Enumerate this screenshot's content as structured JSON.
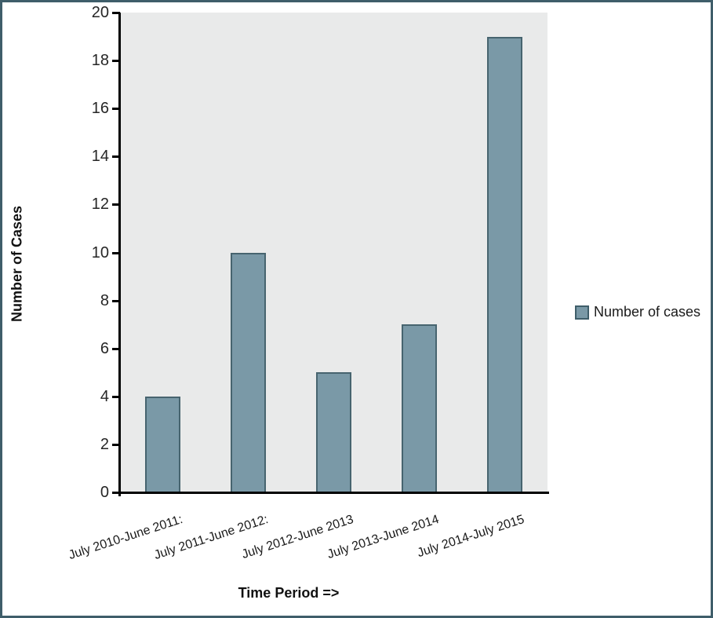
{
  "chart_data": {
    "type": "bar",
    "categories": [
      "July 2010-June 2011:",
      "July 2011-June 2012:",
      "July 2012-June 2013",
      "July 2013-June 2014",
      "July 2014-July 2015"
    ],
    "values": [
      4,
      10,
      5,
      7,
      19
    ],
    "series_name": "Number of cases",
    "title": "",
    "xlabel": "Time Period =>",
    "ylabel": "Number of Cases",
    "ylim": [
      0,
      20
    ],
    "ytick_step": 2,
    "grid": false,
    "legend_position": "right",
    "colors": {
      "bar_fill": "#7a99a7",
      "bar_border": "#47646f",
      "plot_background": "#e9eaea",
      "axis": "#000000",
      "frame_border": "#3f5e6a",
      "text": "#1a1a1a"
    }
  }
}
